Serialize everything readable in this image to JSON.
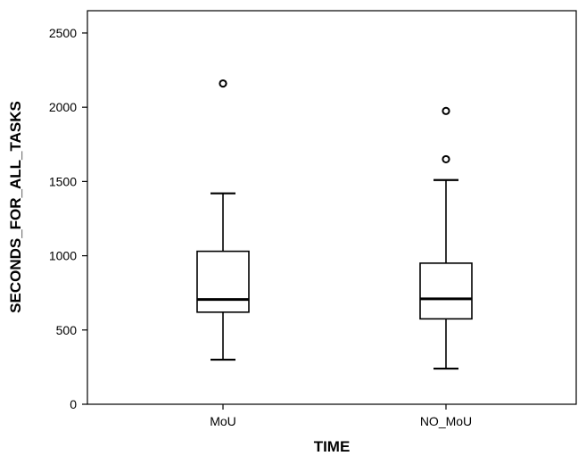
{
  "chart_data": {
    "type": "boxplot",
    "title": "",
    "xlabel": "TIME",
    "ylabel": "SECONDS_FOR_ALL_TASKS",
    "ylim": [
      0,
      2650
    ],
    "yticks": [
      0,
      500,
      1000,
      1500,
      2000,
      2500
    ],
    "ytick_labels": [
      "0",
      "500",
      "1000",
      "1500",
      "2000",
      "2500"
    ],
    "categories": [
      "MoU",
      "NO_MoU"
    ],
    "boxes": [
      {
        "category": "MoU",
        "whisker_low": 300,
        "q1": 620,
        "median": 705,
        "q3": 1030,
        "whisker_high": 1420,
        "outliers": [
          2160
        ]
      },
      {
        "category": "NO_MoU",
        "whisker_low": 240,
        "q1": 575,
        "median": 710,
        "q3": 950,
        "whisker_high": 1510,
        "outliers": [
          1650,
          1975
        ]
      }
    ],
    "grid": false,
    "legend": "none"
  }
}
